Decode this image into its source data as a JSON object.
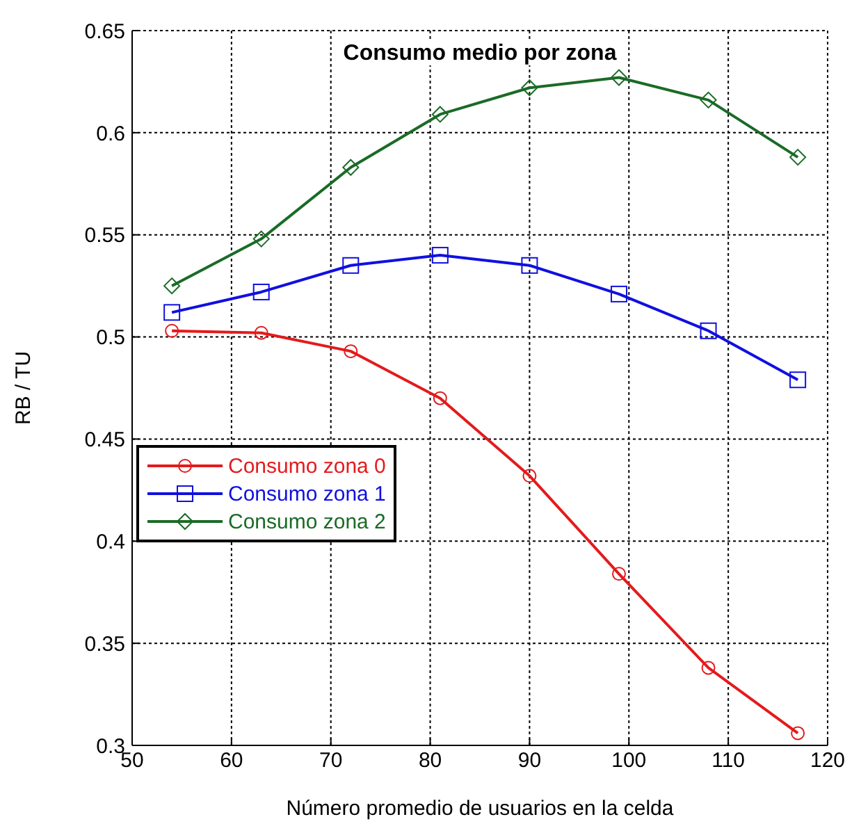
{
  "chart_data": {
    "type": "line",
    "title": "Consumo medio por zona",
    "xlabel": "Número promedio de usuarios en la celda",
    "ylabel": "RB / TU",
    "x": [
      54,
      63,
      72,
      81,
      90,
      99,
      108,
      117
    ],
    "series": [
      {
        "name": "Consumo zona 0",
        "color": "#e41a1c",
        "marker": "circle",
        "values": [
          0.503,
          0.502,
          0.493,
          0.47,
          0.432,
          0.384,
          0.338,
          0.306
        ]
      },
      {
        "name": "Consumo zona 1",
        "color": "#1010e0",
        "marker": "square",
        "values": [
          0.512,
          0.522,
          0.535,
          0.54,
          0.535,
          0.521,
          0.503,
          0.479
        ]
      },
      {
        "name": "Consumo zona 2",
        "color": "#1a6b26",
        "marker": "diamond",
        "values": [
          0.525,
          0.548,
          0.583,
          0.609,
          0.622,
          0.627,
          0.616,
          0.588
        ]
      }
    ],
    "xlim": [
      50,
      120
    ],
    "xticks": [
      50,
      60,
      70,
      80,
      90,
      100,
      110,
      120
    ],
    "ylim": [
      0.3,
      0.65
    ],
    "yticks": [
      0.3,
      0.35,
      0.4,
      0.45,
      0.5,
      0.55,
      0.6,
      0.65
    ],
    "grid": true,
    "legend": "left",
    "line_style": "solid"
  }
}
